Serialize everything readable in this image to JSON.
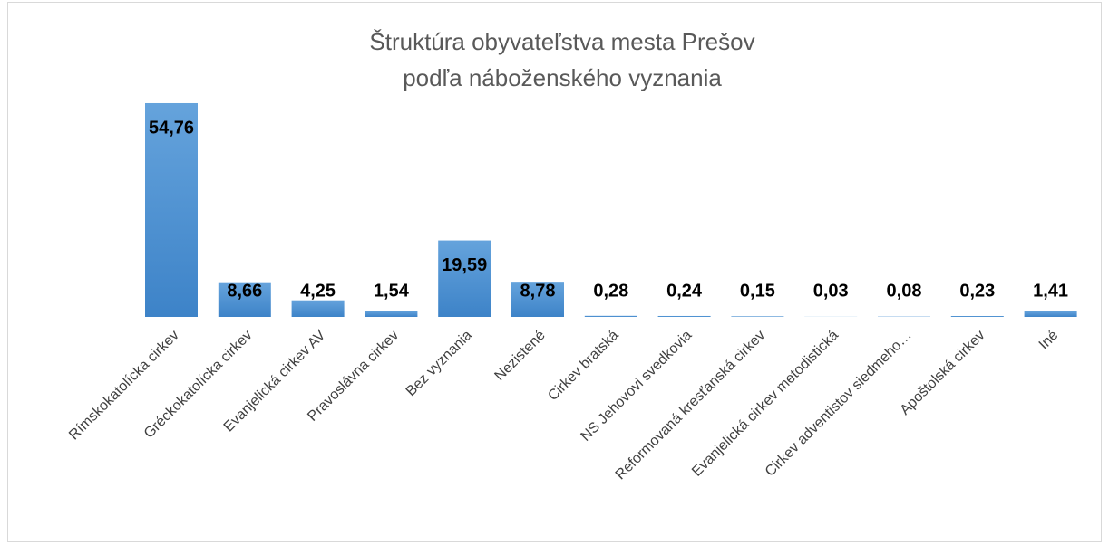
{
  "chart_data": {
    "type": "bar",
    "title": [
      "Štruktúra obyvateľstva mesta Prešov",
      "podľa náboženského vyznania"
    ],
    "categories": [
      "Rímskokatolícka cirkev",
      "Gréckokatolícka cirkev",
      "Evanjelická cirkev AV",
      "Pravoslávna cirkev",
      "Bez vyznania",
      "Nezistené",
      "Cirkev bratská",
      "NS Jehovovi svedkovia",
      "Reformovaná kresťanská cirkev",
      "Evanjelická cirkev metodistická",
      "Cirkev adventistov siedmeho…",
      "Apoštolská cirkev",
      "Iné"
    ],
    "values": [
      54.76,
      8.66,
      4.25,
      1.54,
      19.59,
      8.78,
      0.28,
      0.24,
      0.15,
      0.03,
      0.08,
      0.23,
      1.41
    ],
    "value_labels": [
      "54,76",
      "8,66",
      "4,25",
      "1,54",
      "19,59",
      "8,78",
      "0,28",
      "0,24",
      "0,15",
      "0,03",
      "0,08",
      "0,23",
      "1,41"
    ],
    "color": "#5b9bd5"
  }
}
